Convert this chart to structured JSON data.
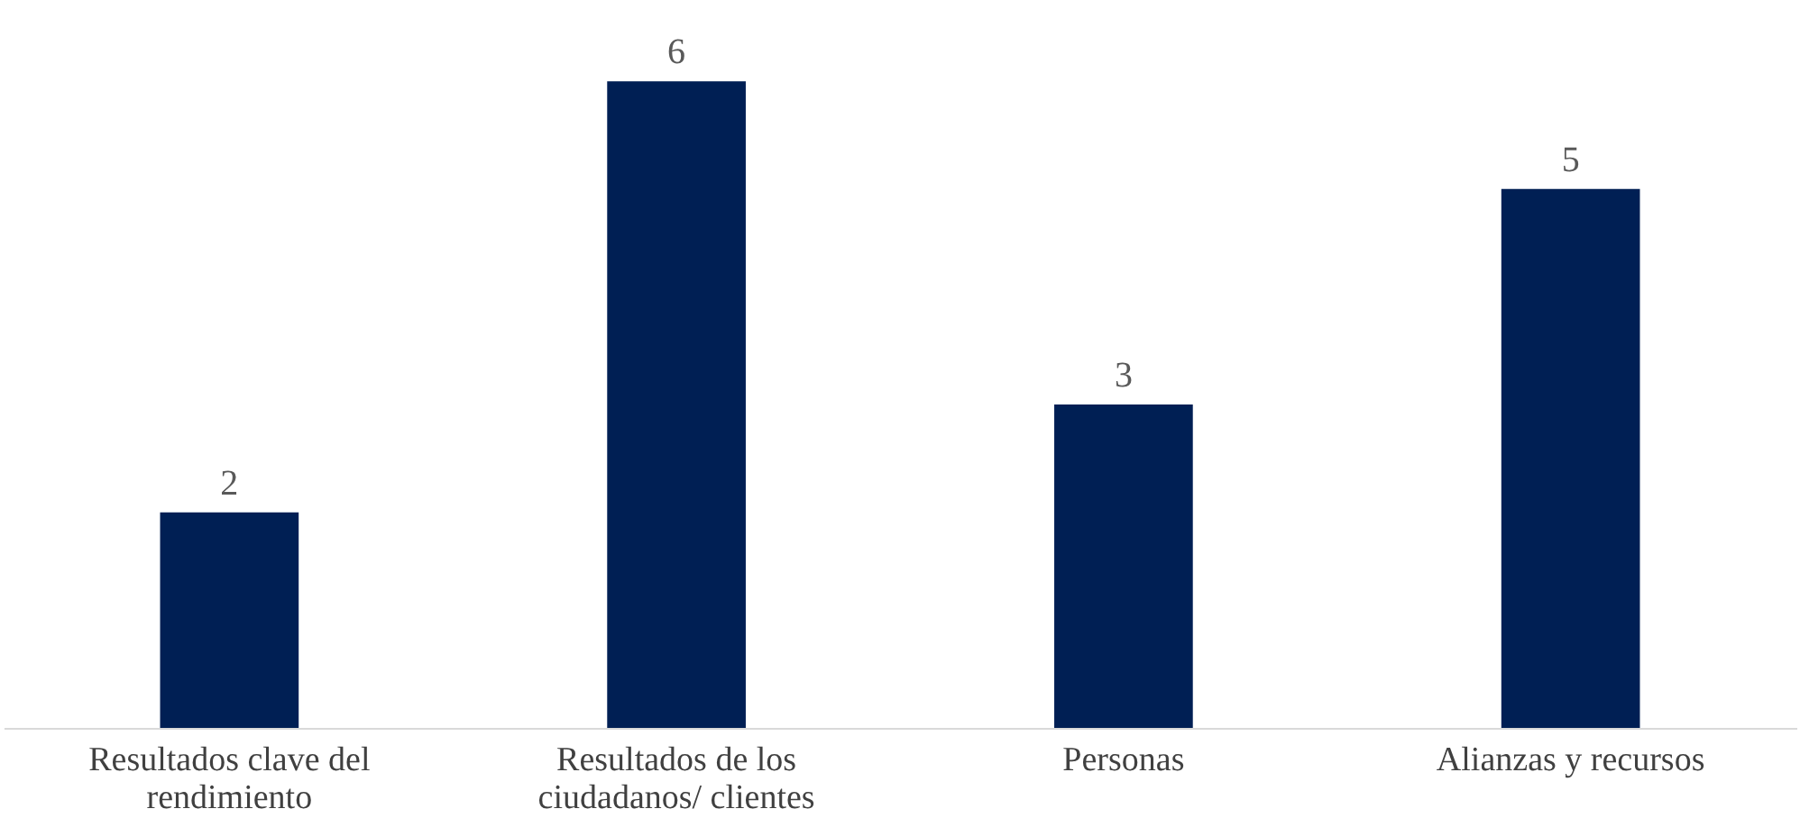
{
  "chart_data": {
    "type": "bar",
    "categories": [
      "Resultados clave del rendimiento",
      "Resultados de los ciudadanos/ clientes",
      "Personas",
      "Alianzas  y recursos"
    ],
    "values": [
      2,
      6,
      3,
      5
    ],
    "color": "#001f54",
    "data_labels": true
  }
}
